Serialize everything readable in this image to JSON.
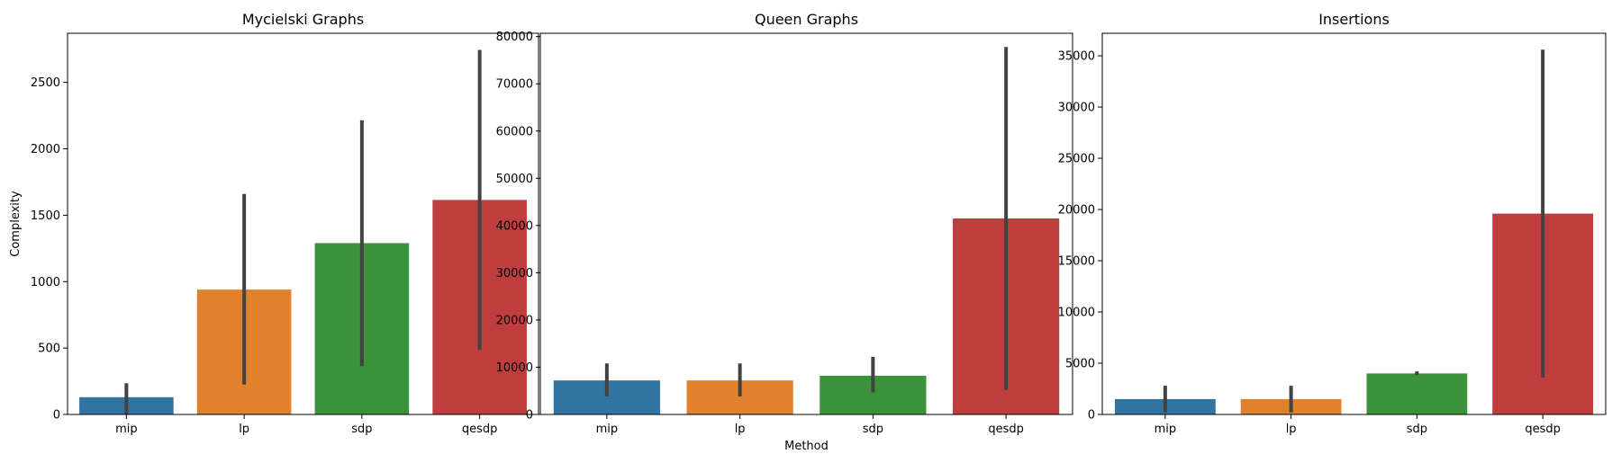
{
  "chart_data": [
    {
      "type": "bar",
      "title": "Mycielski Graphs",
      "xlabel": "",
      "ylabel": "Complexity",
      "categories": [
        "mip",
        "lp",
        "sdp",
        "qesdp"
      ],
      "values": [
        130,
        940,
        1290,
        1615
      ],
      "error_low": [
        0,
        225,
        365,
        485
      ],
      "error_high": [
        235,
        1660,
        2215,
        2745
      ],
      "ylim": [
        0,
        2870
      ],
      "yticks": [
        0,
        500,
        1000,
        1500,
        2000,
        2500
      ],
      "ytick_labels": [
        "0",
        "500",
        "1000",
        "1500",
        "2000",
        "2500"
      ],
      "colors": [
        "#3274a1",
        "#e1812c",
        "#3a923a",
        "#c03d3e"
      ]
    },
    {
      "type": "bar",
      "title": "Queen Graphs",
      "xlabel": "Method",
      "ylabel": "",
      "categories": [
        "mip",
        "lp",
        "sdp",
        "qesdp"
      ],
      "values": [
        7200,
        7200,
        8200,
        41500
      ],
      "error_low": [
        3800,
        3800,
        4700,
        5200
      ],
      "error_high": [
        10800,
        10800,
        12200,
        77800
      ],
      "ylim": [
        0,
        80700
      ],
      "yticks": [
        0,
        10000,
        20000,
        30000,
        40000,
        50000,
        60000,
        70000,
        80000
      ],
      "ytick_labels": [
        "0",
        "10000",
        "20000",
        "30000",
        "40000",
        "50000",
        "60000",
        "70000",
        "80000"
      ],
      "colors": [
        "#3274a1",
        "#e1812c",
        "#3a923a",
        "#c03d3e"
      ]
    },
    {
      "type": "bar",
      "title": "Insertions",
      "xlabel": "",
      "ylabel": "",
      "categories": [
        "mip",
        "lp",
        "sdp",
        "qesdp"
      ],
      "values": [
        1500,
        1500,
        4000,
        19600
      ],
      "error_low": [
        200,
        200,
        3850,
        3600
      ],
      "error_high": [
        2800,
        2800,
        4200,
        35600
      ],
      "ylim": [
        0,
        37200
      ],
      "yticks": [
        0,
        5000,
        10000,
        15000,
        20000,
        25000,
        30000,
        35000
      ],
      "ytick_labels": [
        "0",
        "5000",
        "10000",
        "15000",
        "20000",
        "25000",
        "30000",
        "35000"
      ],
      "colors": [
        "#3274a1",
        "#e1812c",
        "#3a923a",
        "#c03d3e"
      ]
    }
  ]
}
